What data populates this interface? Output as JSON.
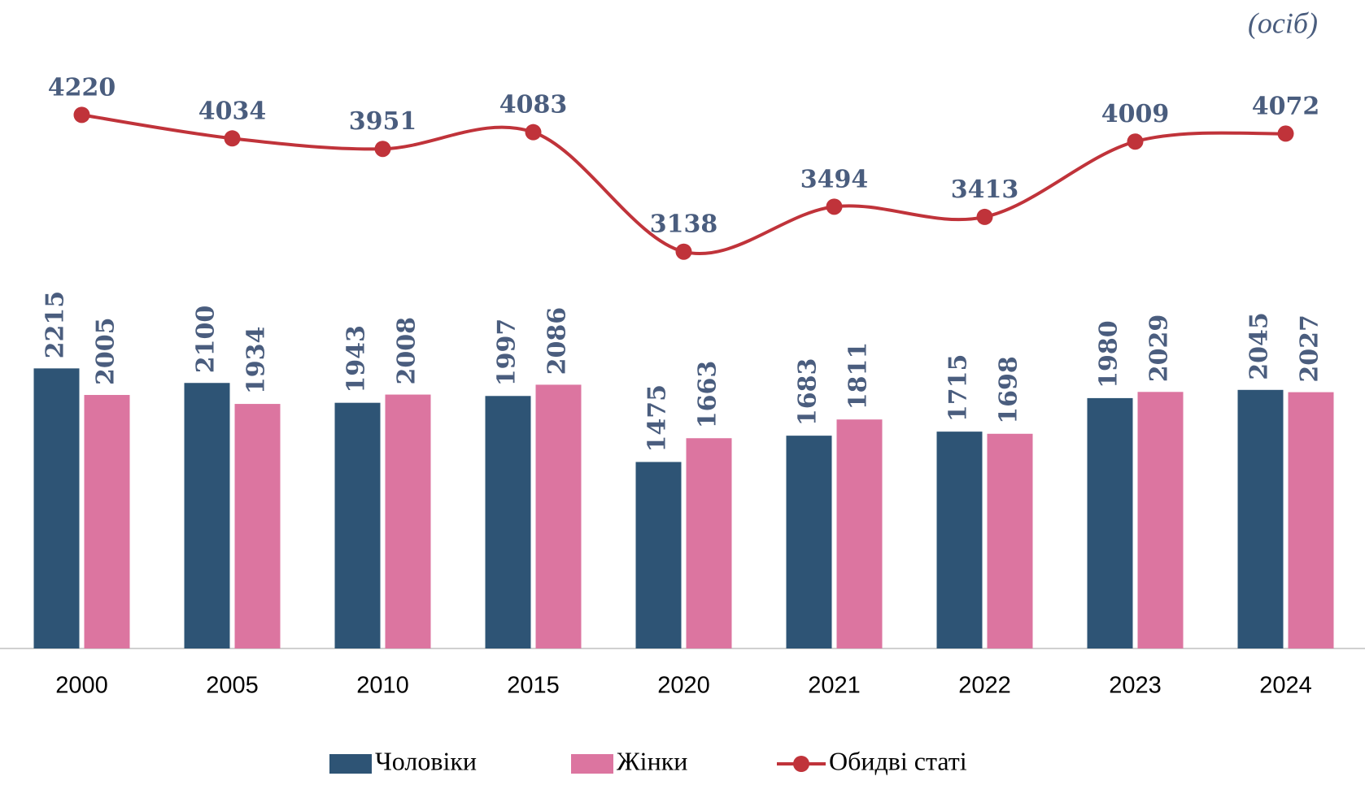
{
  "chart_data": {
    "type": "bar_line",
    "unit_label": "(осіб)",
    "categories": [
      "2000",
      "2005",
      "2010",
      "2015",
      "2020",
      "2021",
      "2022",
      "2023",
      "2024"
    ],
    "series": [
      {
        "name": "Чоловіки",
        "color": "#2e5475",
        "type": "bar",
        "values": [
          2215,
          2100,
          1943,
          1997,
          1475,
          1683,
          1715,
          1980,
          2045
        ]
      },
      {
        "name": "Жінки",
        "color": "#dc75a0",
        "type": "bar",
        "values": [
          2005,
          1934,
          2008,
          2086,
          1663,
          1811,
          1698,
          2029,
          2027
        ]
      },
      {
        "name": "Обидві статі",
        "color": "#c0333a",
        "type": "line",
        "values": [
          4220,
          4034,
          3951,
          4083,
          3138,
          3494,
          3413,
          4009,
          4072
        ]
      }
    ],
    "ylim": [
      0,
      5000
    ],
    "legend": "bottom"
  }
}
